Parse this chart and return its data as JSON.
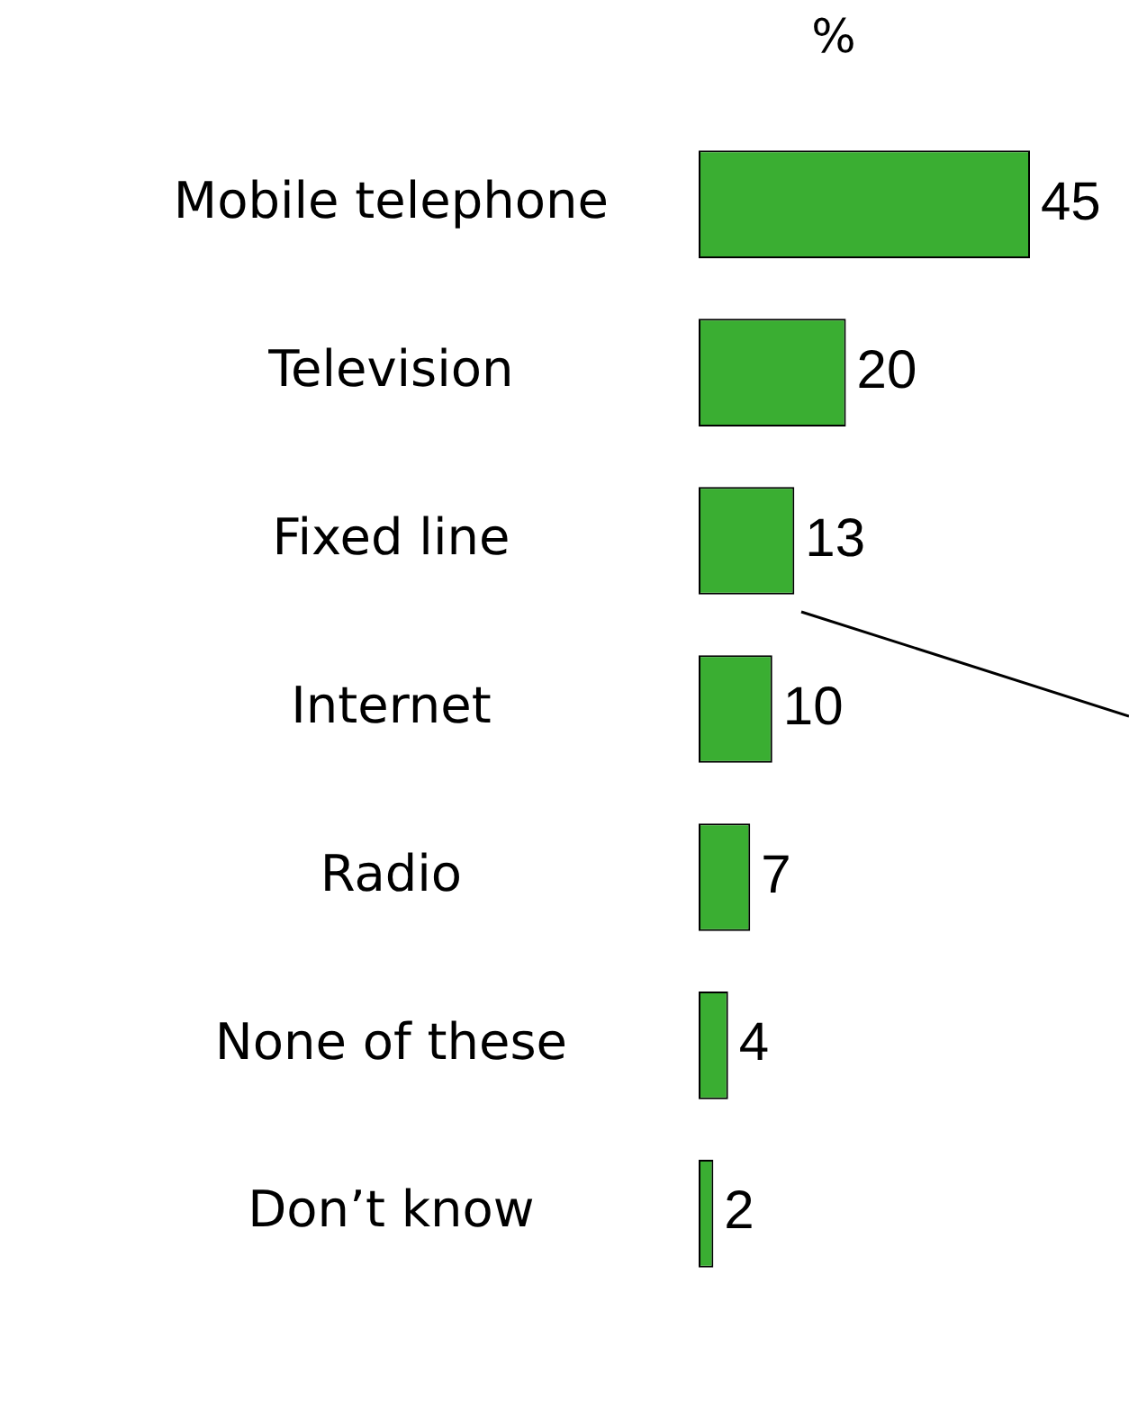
{
  "chart_data": {
    "type": "bar",
    "orientation": "horizontal",
    "title": "%",
    "categories": [
      "Mobile telephone",
      "Television",
      "Fixed line",
      "Internet",
      "Radio",
      "None of these",
      "Don’t know"
    ],
    "values": [
      45,
      20,
      13,
      10,
      7,
      4,
      2
    ],
    "color": "#3aae32",
    "data_labels": true,
    "grid": false,
    "legend": false
  }
}
